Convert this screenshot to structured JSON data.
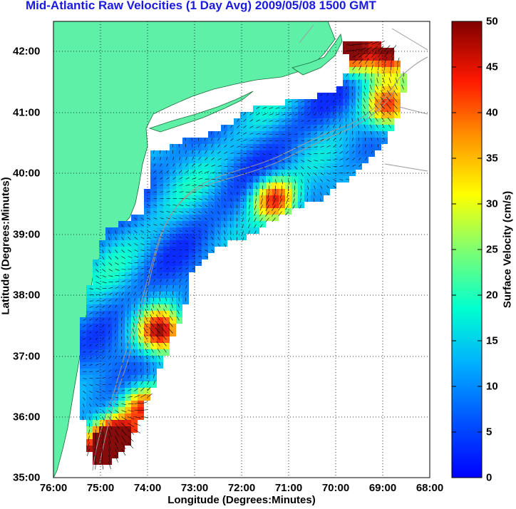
{
  "title": "Mid-Atlantic Raw Velocities (1 Day Avg) 2009/05/08 1500 GMT",
  "x_axis": {
    "label": "Longitude (Degrees:Minutes)",
    "ticks": [
      "76:00",
      "75:00",
      "74:00",
      "73:00",
      "72:00",
      "71:00",
      "70:00",
      "69:00",
      "68:00"
    ]
  },
  "y_axis": {
    "label": "Latitude (Degrees:Minutes)",
    "ticks": [
      "42:00",
      "41:00",
      "40:00",
      "39:00",
      "38:00",
      "37:00",
      "36:00",
      "35:00"
    ]
  },
  "colorbar": {
    "label": "Surface Velocity (cm/s)",
    "ticks": [
      "50",
      "45",
      "40",
      "35",
      "30",
      "25",
      "20",
      "15",
      "10",
      "5",
      "0"
    ],
    "range": [
      0,
      50
    ],
    "colormap": "jet"
  },
  "colors": {
    "land": "#5ff0a8",
    "title": "#1a1ae0",
    "bathymetry": "#9a9a9a",
    "grid": "#000000"
  },
  "map_extent": {
    "lon_min": -76,
    "lon_max": -68,
    "lat_min": 35,
    "lat_max": 42.5
  }
}
